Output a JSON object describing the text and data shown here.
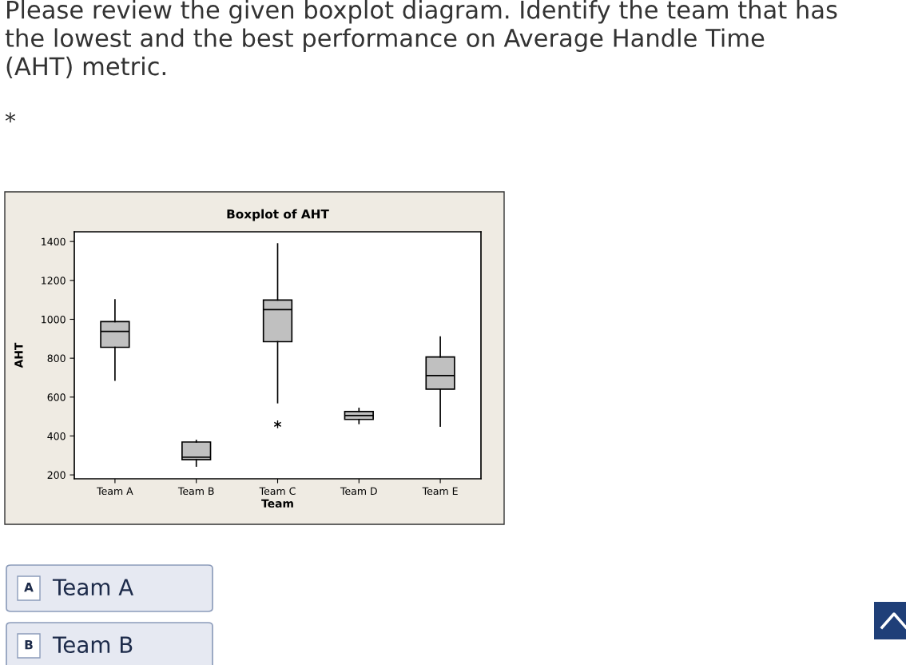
{
  "chart_data": {
    "type": "box",
    "title": "Boxplot of AHT",
    "xlabel": "Team",
    "ylabel": "AHT",
    "categories": [
      "Team A",
      "Team B",
      "Team C",
      "Team D",
      "Team E"
    ],
    "boxes": [
      {
        "low": 687,
        "q1": 856,
        "median": 938,
        "q3": 988,
        "high": 1100
      },
      {
        "low": 245,
        "q1": 278,
        "median": 291,
        "q3": 369,
        "high": 377
      },
      {
        "low": 571,
        "q1": 885,
        "median": 1050,
        "q3": 1099,
        "high": 1388,
        "outliers": [
          460
        ]
      },
      {
        "low": 464,
        "q1": 485,
        "median": 505,
        "q3": 526,
        "high": 542
      },
      {
        "low": 451,
        "q1": 641,
        "median": 711,
        "q3": 806,
        "high": 909
      }
    ],
    "color": "#c0c0c0",
    "ylim": [
      180,
      1450
    ],
    "yticks": [
      200,
      400,
      600,
      800,
      1000,
      1200,
      1400
    ],
    "grid": false,
    "annotations": [
      "Please review the given boxplot diagram. Identify the team that has\nthe lowest and the best performance on Average Handle Time\n(AHT) metric.",
      "*",
      "A",
      "Team A",
      "B",
      "Team B"
    ]
  }
}
